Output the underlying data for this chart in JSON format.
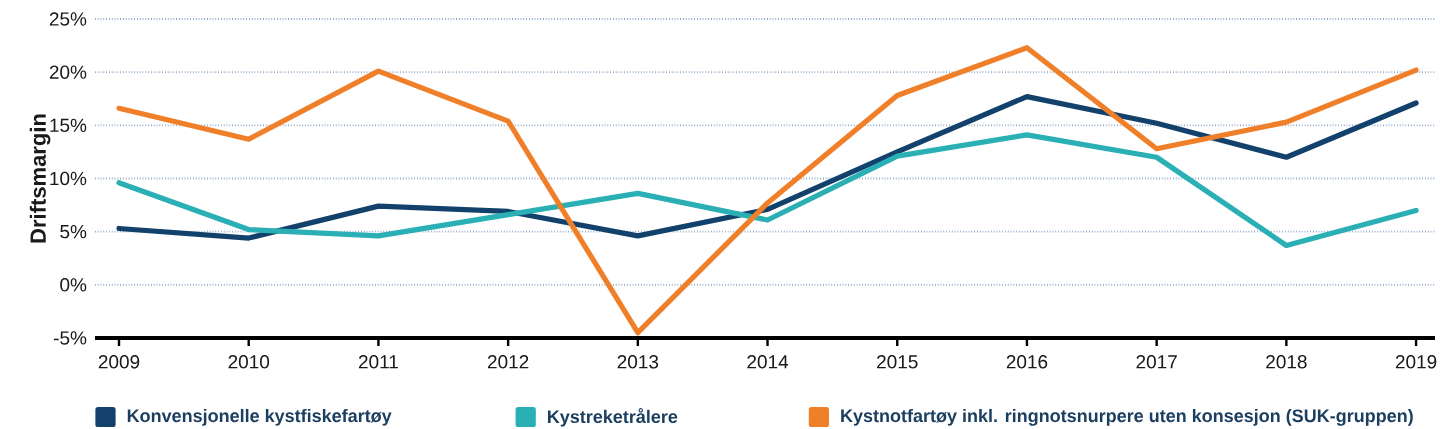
{
  "chart_data": {
    "type": "line",
    "ylabel": "Driftsmargin",
    "categories": [
      "2009",
      "2010",
      "2011",
      "2012",
      "2013",
      "2014",
      "2015",
      "2016",
      "2017",
      "2018",
      "2019"
    ],
    "series": [
      {
        "name": "Konvensjonelle kystfiskefartøy",
        "color": "#12416b",
        "values": [
          5.3,
          4.4,
          7.4,
          6.9,
          4.6,
          7.1,
          12.5,
          17.7,
          15.2,
          12.0,
          17.1
        ]
      },
      {
        "name": "Kystreketrålere",
        "color": "#2aafb5",
        "values": [
          9.6,
          5.2,
          4.6,
          6.6,
          8.6,
          6.1,
          12.1,
          14.1,
          12.0,
          3.7,
          7.0
        ]
      },
      {
        "name": "Kystnotfartøy inkl. ringnotsnurpere uten konsesjon (SUK-gruppen)",
        "color": "#f07f2a",
        "values": [
          16.6,
          13.7,
          20.1,
          15.4,
          -4.5,
          7.7,
          17.8,
          22.3,
          12.8,
          15.3,
          20.2
        ]
      }
    ],
    "ylim": [
      -5,
      25
    ],
    "yticks": [
      {
        "value": -5,
        "label": "-5%"
      },
      {
        "value": 0,
        "label": "0%"
      },
      {
        "value": 5,
        "label": "5%"
      },
      {
        "value": 10,
        "label": "10%"
      },
      {
        "value": 15,
        "label": "15%"
      },
      {
        "value": 20,
        "label": "20%"
      },
      {
        "value": 25,
        "label": "25%"
      }
    ],
    "grid": "y",
    "legend": "bottom",
    "line_style": "solid"
  }
}
